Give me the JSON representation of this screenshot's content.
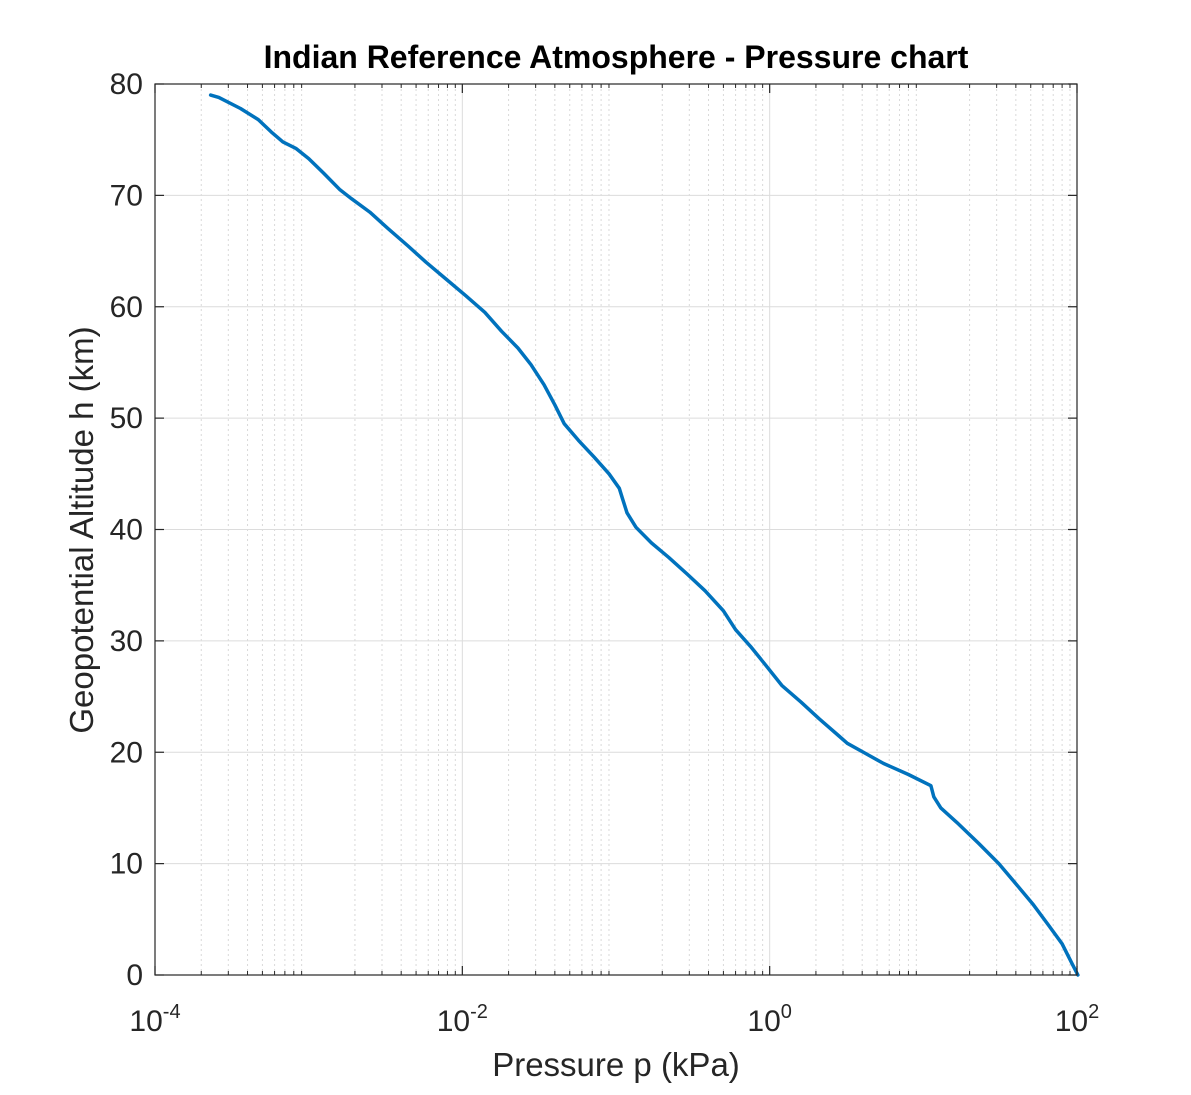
{
  "chart_data": {
    "type": "line",
    "title": "Indian Reference Atmosphere - Pressure chart",
    "xlabel": "Pressure p (kPa)",
    "ylabel": "Geopotential Altitude h (km)",
    "xscale": "log",
    "xlim": [
      0.0001,
      100
    ],
    "ylim": [
      0,
      80
    ],
    "grid": true,
    "x_tick_labels": [
      {
        "value": 0.0001,
        "base": "10",
        "exp": "-4"
      },
      {
        "value": 0.01,
        "base": "10",
        "exp": "-2"
      },
      {
        "value": 1,
        "base": "10",
        "exp": "0"
      },
      {
        "value": 100,
        "base": "10",
        "exp": "2"
      }
    ],
    "y_ticks": [
      0,
      10,
      20,
      30,
      40,
      50,
      60,
      70,
      80
    ],
    "y_tick_labels": [
      "0",
      "10",
      "20",
      "30",
      "40",
      "50",
      "60",
      "70",
      "80"
    ],
    "series": [
      {
        "color": "#0072BD",
        "points": [
          [
            101.3,
            0
          ],
          [
            93,
            1
          ],
          [
            80,
            2.8
          ],
          [
            65,
            4.5
          ],
          [
            52,
            6.3
          ],
          [
            40,
            8.2
          ],
          [
            31,
            10
          ],
          [
            23,
            11.8
          ],
          [
            16.5,
            13.7
          ],
          [
            13,
            15
          ],
          [
            11.7,
            16
          ],
          [
            11.2,
            17
          ],
          [
            8,
            18
          ],
          [
            5.5,
            19
          ],
          [
            4.2,
            19.9
          ],
          [
            3.2,
            20.8
          ],
          [
            2.8,
            21.5
          ],
          [
            2.1,
            23
          ],
          [
            1.6,
            24.5
          ],
          [
            1.2,
            26
          ],
          [
            0.92,
            28
          ],
          [
            0.75,
            29.5
          ],
          [
            0.6,
            31
          ],
          [
            0.5,
            32.7
          ],
          [
            0.38,
            34.5
          ],
          [
            0.29,
            36
          ],
          [
            0.22,
            37.5
          ],
          [
            0.17,
            38.8
          ],
          [
            0.135,
            40.2
          ],
          [
            0.118,
            41.5
          ],
          [
            0.11,
            42.8
          ],
          [
            0.105,
            43.7
          ],
          [
            0.09,
            45
          ],
          [
            0.072,
            46.5
          ],
          [
            0.057,
            48
          ],
          [
            0.046,
            49.5
          ],
          [
            0.04,
            51.2
          ],
          [
            0.034,
            53
          ],
          [
            0.028,
            54.8
          ],
          [
            0.023,
            56.3
          ],
          [
            0.018,
            57.8
          ],
          [
            0.014,
            59.5
          ],
          [
            0.0105,
            61
          ],
          [
            0.0078,
            62.5
          ],
          [
            0.0058,
            64
          ],
          [
            0.0044,
            65.5
          ],
          [
            0.0033,
            67
          ],
          [
            0.0025,
            68.5
          ],
          [
            0.0019,
            69.7
          ],
          [
            0.0016,
            70.5
          ],
          [
            0.00125,
            72
          ],
          [
            0.001,
            73.3
          ],
          [
            0.00083,
            74.2
          ],
          [
            0.00068,
            74.8
          ],
          [
            0.00057,
            75.7
          ],
          [
            0.00047,
            76.8
          ],
          [
            0.00036,
            77.8
          ],
          [
            0.00026,
            78.8
          ],
          [
            0.00023,
            79
          ]
        ]
      }
    ]
  }
}
